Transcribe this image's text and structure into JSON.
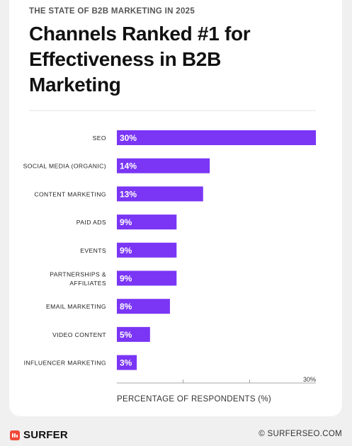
{
  "header": {
    "eyebrow": "THE STATE OF B2B MARKETING IN 2025",
    "title": "Channels Ranked #1 for Effectiveness in B2B Marketing"
  },
  "chart_data": {
    "type": "bar",
    "orientation": "horizontal",
    "categories": [
      "SEO",
      "SOCIAL MEDIA (ORGANIC)",
      "CONTENT MARKETING",
      "PAID ADS",
      "EVENTS",
      "PARTNERSHIPS & AFFILIATES",
      "EMAIL MARKETING",
      "VIDEO CONTENT",
      "INFLUENCER MARKETING"
    ],
    "values": [
      30,
      14,
      13,
      9,
      9,
      9,
      8,
      5,
      3
    ],
    "value_labels": [
      "30%",
      "14%",
      "13%",
      "9%",
      "9%",
      "9%",
      "8%",
      "5%",
      "3%"
    ],
    "xlabel": "PERCENTAGE OF RESPONDENTS (%)",
    "xlim": [
      0,
      30
    ],
    "x_tick_labels": [
      "30%"
    ],
    "bar_color": "#7a35f5"
  },
  "footer": {
    "brand": "SURFER",
    "copyright": "© SURFERSEO.COM",
    "brand_color": "#ef4a3a"
  }
}
